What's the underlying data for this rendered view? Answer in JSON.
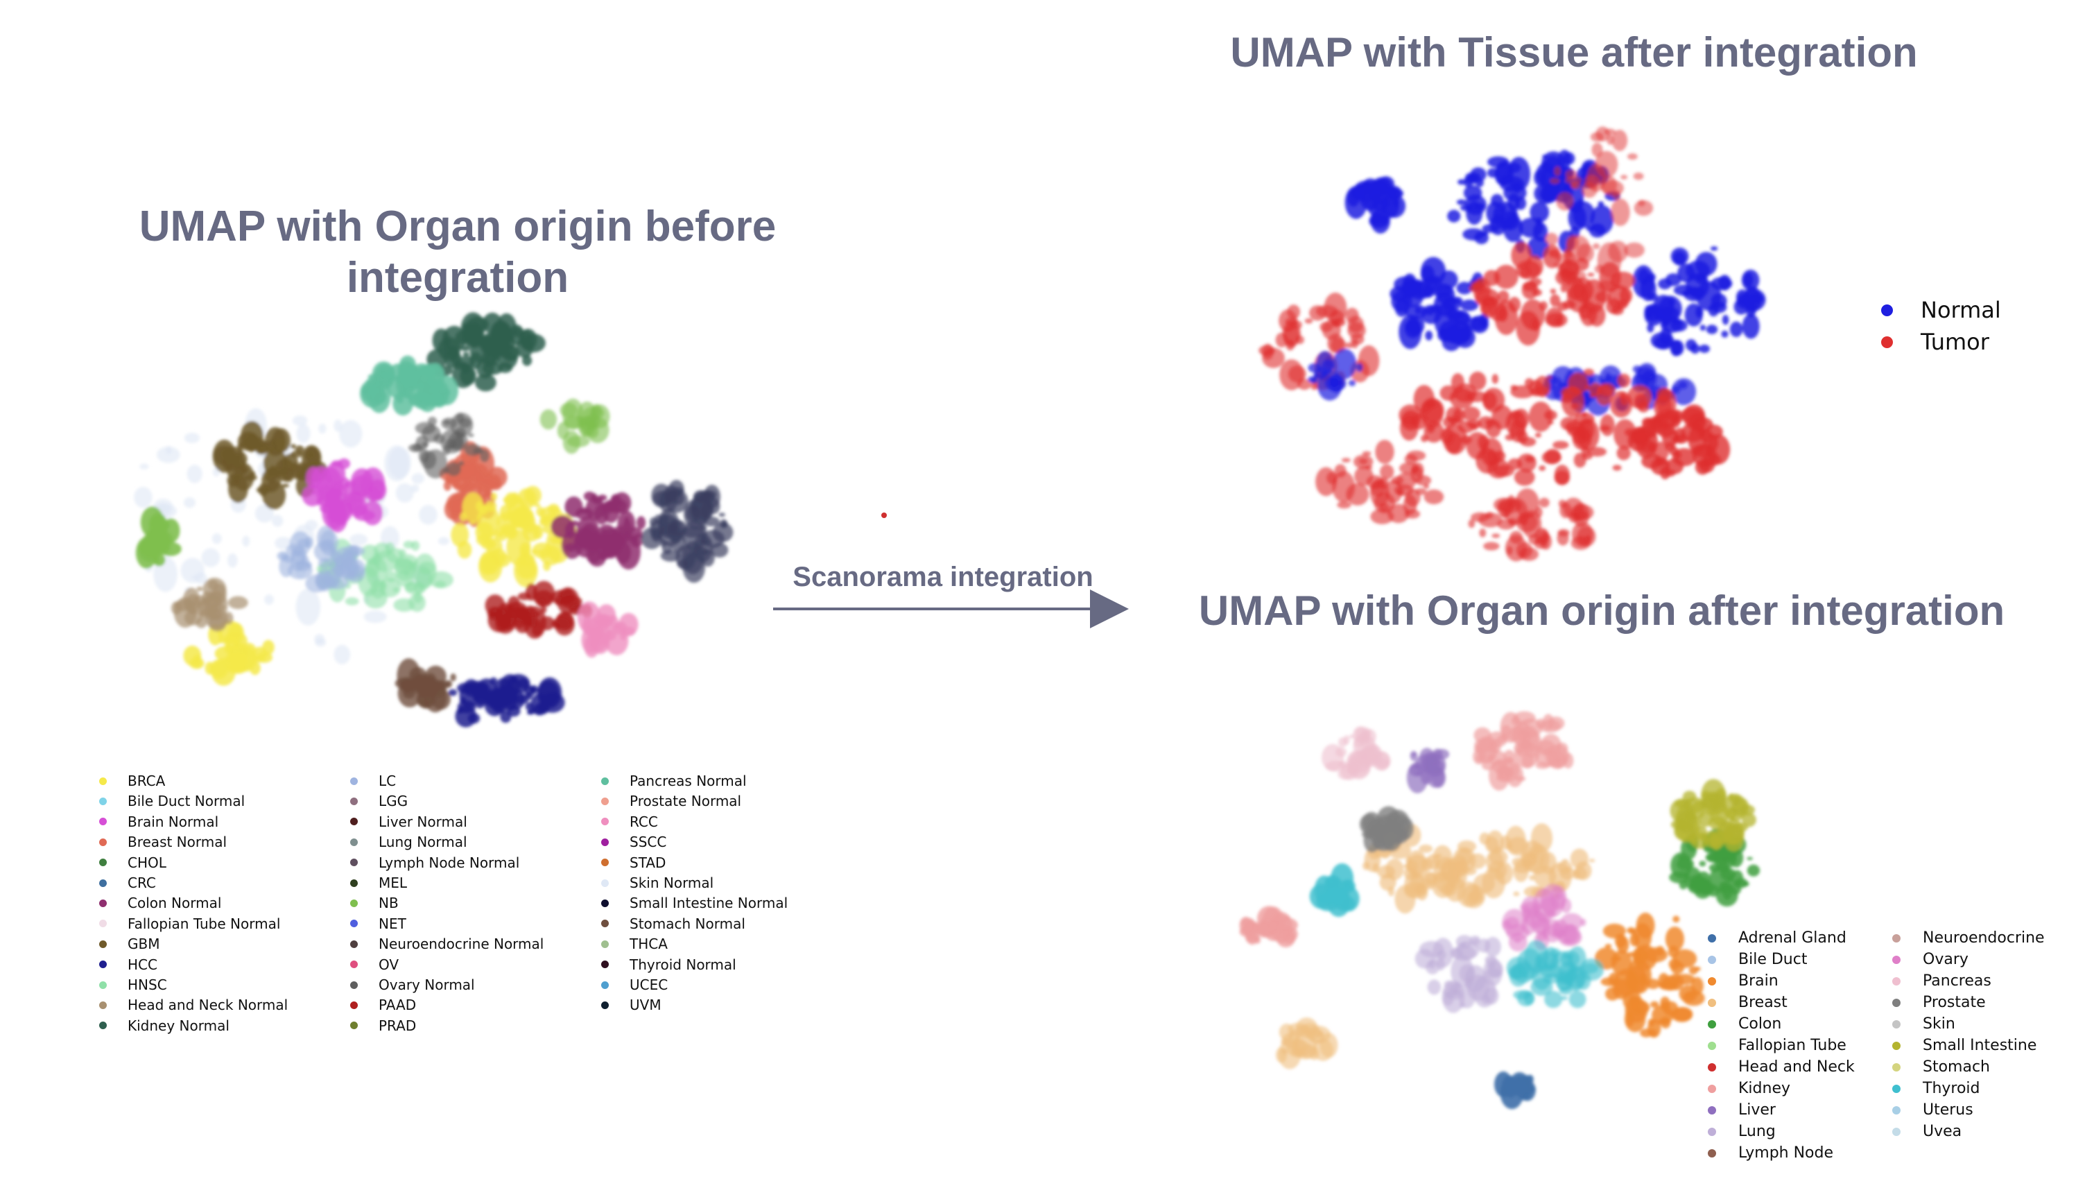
{
  "titles": {
    "before": "UMAP with Organ origin before integration",
    "tissue": "UMAP with Tissue after integration",
    "organ_after": "UMAP with Organ origin after integration"
  },
  "arrow_label": "Scanorama integration",
  "legend_before": [
    {
      "label": "BRCA",
      "color": "#f5e94a"
    },
    {
      "label": "Bile Duct Normal",
      "color": "#7fd3e8"
    },
    {
      "label": "Brain Normal",
      "color": "#d64fd6"
    },
    {
      "label": "Breast Normal",
      "color": "#e06a55"
    },
    {
      "label": "CHOL",
      "color": "#3f7f3f"
    },
    {
      "label": "CRC",
      "color": "#3f6f9f"
    },
    {
      "label": "Colon Normal",
      "color": "#8f2f6f"
    },
    {
      "label": "Fallopian Tube Normal",
      "color": "#f0dce6"
    },
    {
      "label": "GBM",
      "color": "#6f5a2a"
    },
    {
      "label": "HCC",
      "color": "#1f1f8f"
    },
    {
      "label": "HNSC",
      "color": "#8fe0a8"
    },
    {
      "label": "Head and Neck Normal",
      "color": "#a89070"
    },
    {
      "label": "Kidney Normal",
      "color": "#2f5f4f"
    },
    {
      "label": "LC",
      "color": "#9fb4e0"
    },
    {
      "label": "LGG",
      "color": "#8f6f7f"
    },
    {
      "label": "Liver Normal",
      "color": "#4f1f1f"
    },
    {
      "label": "Lung Normal",
      "color": "#7f8f8f"
    },
    {
      "label": "Lymph Node Normal",
      "color": "#5f4f5f"
    },
    {
      "label": "MEL",
      "color": "#2f3f1f"
    },
    {
      "label": "NB",
      "color": "#7fbf4f"
    },
    {
      "label": "NET",
      "color": "#4f5fdf"
    },
    {
      "label": "Neuroendocrine Normal",
      "color": "#4f3f3f"
    },
    {
      "label": "OV",
      "color": "#df4f7f"
    },
    {
      "label": "Ovary Normal",
      "color": "#5f5f5f"
    },
    {
      "label": "PAAD",
      "color": "#af1f1f"
    },
    {
      "label": "PRAD",
      "color": "#6f7f2f"
    },
    {
      "label": "Pancreas Normal",
      "color": "#5fbf9f"
    },
    {
      "label": "Prostate Normal",
      "color": "#ef9f8f"
    },
    {
      "label": "RCC",
      "color": "#ef8fbf"
    },
    {
      "label": "SSCC",
      "color": "#9f1f9f"
    },
    {
      "label": "STAD",
      "color": "#cf6f2f"
    },
    {
      "label": "Skin Normal",
      "color": "#dfe8f5"
    },
    {
      "label": "Small Intestine Normal",
      "color": "#0f0f2f"
    },
    {
      "label": "Stomach Normal",
      "color": "#6f4f3f"
    },
    {
      "label": "THCA",
      "color": "#9fbf8f"
    },
    {
      "label": "Thyroid Normal",
      "color": "#2f0f1f"
    },
    {
      "label": "UCEC",
      "color": "#4f9fcf"
    },
    {
      "label": "UVM",
      "color": "#0f1f2f"
    }
  ],
  "legend_tissue": [
    {
      "label": "Normal",
      "color": "#1f1fe0"
    },
    {
      "label": "Tumor",
      "color": "#df2f2f"
    }
  ],
  "legend_organ": [
    {
      "label": "Adrenal Gland",
      "color": "#3f6fa8"
    },
    {
      "label": "Bile Duct",
      "color": "#a8c4e6"
    },
    {
      "label": "Brain",
      "color": "#f08a2f"
    },
    {
      "label": "Breast",
      "color": "#f0bf80"
    },
    {
      "label": "Colon",
      "color": "#3f9f3f"
    },
    {
      "label": "Fallopian Tube",
      "color": "#9fdf8f"
    },
    {
      "label": "Head and Neck",
      "color": "#cf2f2f"
    },
    {
      "label": "Kidney",
      "color": "#ef9f9f"
    },
    {
      "label": "Liver",
      "color": "#8f6fbf"
    },
    {
      "label": "Lung",
      "color": "#bfafd8"
    },
    {
      "label": "Lymph Node",
      "color": "#8f5f4f"
    },
    {
      "label": "Neuroendocrine",
      "color": "#c8a09a"
    },
    {
      "label": "Ovary",
      "color": "#df7fc8"
    },
    {
      "label": "Pancreas",
      "color": "#efbfcf"
    },
    {
      "label": "Prostate",
      "color": "#7f7f7f"
    },
    {
      "label": "Skin",
      "color": "#c4c4c4"
    },
    {
      "label": "Small Intestine",
      "color": "#b4b42f"
    },
    {
      "label": "Stomach",
      "color": "#d4d47f"
    },
    {
      "label": "Thyroid",
      "color": "#3fbfcf"
    },
    {
      "label": "Uterus",
      "color": "#a8cfe6"
    },
    {
      "label": "Uvea",
      "color": "#c4dce8"
    }
  ]
}
